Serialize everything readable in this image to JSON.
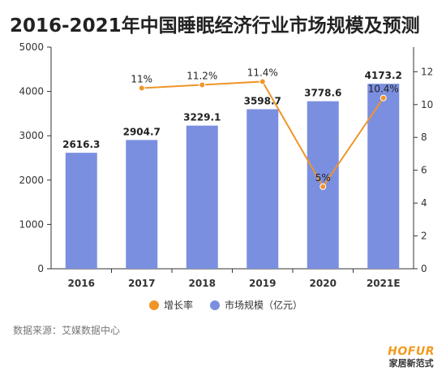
{
  "title": "2016-2021年中国睡眠经济行业市场规模及预测",
  "source": "数据来源：艾媒数据中心",
  "brand": {
    "logo": "HOFUR",
    "name": "家居新范式"
  },
  "colors": {
    "bar": "#7b8fe0",
    "line": "#f0952a",
    "axis": "#333333",
    "tick_text": "#333333"
  },
  "chart_data": {
    "type": "bar",
    "categories": [
      "2016",
      "2017",
      "2018",
      "2019",
      "2020",
      "2021E"
    ],
    "series": [
      {
        "name": "市场规模（亿元）",
        "type": "bar",
        "axis": "left",
        "values": [
          2616.3,
          2904.7,
          3229.1,
          3598.7,
          3778.6,
          4173.2
        ],
        "labels": [
          "2616.3",
          "2904.7",
          "3229.1",
          "3598.7",
          "3778.6",
          "4173.2"
        ]
      },
      {
        "name": "增长率",
        "type": "line",
        "axis": "right",
        "values": [
          null,
          11,
          11.2,
          11.4,
          5,
          10.4
        ],
        "labels": [
          "",
          "11%",
          "11.2%",
          "11.4%",
          "5%",
          "10.4%"
        ]
      }
    ],
    "y_left": {
      "lim": [
        0,
        5000
      ],
      "ticks": [
        0,
        1000,
        2000,
        3000,
        4000,
        5000
      ]
    },
    "y_right": {
      "lim": [
        0,
        13.5
      ],
      "ticks": [
        0,
        2,
        4,
        6,
        8,
        10,
        12
      ]
    },
    "legend_position": "bottom",
    "grid": false
  }
}
